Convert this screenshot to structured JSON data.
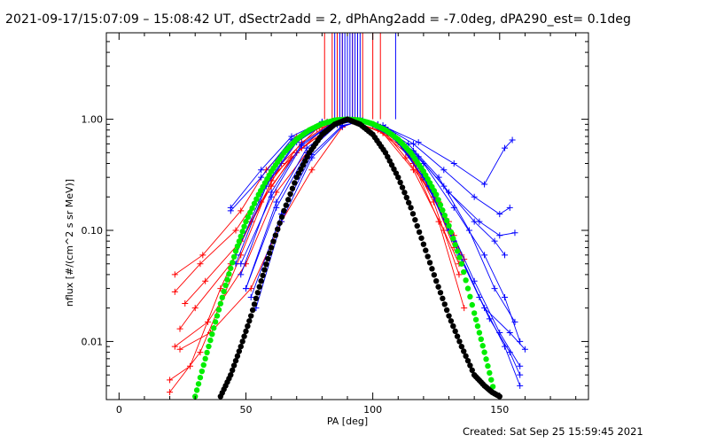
{
  "chart_data": {
    "type": "line",
    "title": "2021-09-17/15:07:09 – 15:08:42 UT, dSectr2add = 2, dPhAng2add = -7.0deg, dPA290_est=  0.1deg",
    "xlabel": "PA [deg]",
    "ylabel": "nflux [#/(cm^2 s sr MeV)]",
    "x_scale": "linear",
    "y_scale": "log",
    "xlim": [
      -5,
      185
    ],
    "ylim": [
      0.003,
      6.0
    ],
    "x_ticks": [
      0,
      50,
      100,
      150
    ],
    "x_tick_labels": [
      "0",
      "50",
      "100",
      "150"
    ],
    "y_ticks": [
      0.01,
      0.1,
      1.0
    ],
    "y_tick_labels": [
      "0.01",
      "0.10",
      "1.00"
    ],
    "colors": {
      "red_series": "#ff0000",
      "blue_series": "#0000ff",
      "green_fit": "#00ee00",
      "black_fit": "#000000"
    },
    "series": [
      {
        "name": "red spectra (PA < 90)",
        "color": "#ff0000",
        "marker": "plus",
        "curves": [
          {
            "x": [
              20,
              32,
              48,
              60,
              72,
              84,
              92,
              102,
              112,
              122,
              132
            ],
            "y": [
              0.0035,
              0.008,
              0.06,
              0.28,
              0.62,
              0.94,
              0.98,
              0.9,
              0.6,
              0.26,
              0.07
            ]
          },
          {
            "x": [
              22,
              35,
              50,
              62,
              74,
              86,
              93,
              104,
              114,
              124,
              134
            ],
            "y": [
              0.009,
              0.015,
              0.05,
              0.22,
              0.5,
              0.9,
              0.99,
              0.86,
              0.5,
              0.18,
              0.04
            ]
          },
          {
            "x": [
              22,
              33,
              48,
              58,
              70,
              82,
              91,
              100,
              110,
              120,
              130
            ],
            "y": [
              0.04,
              0.06,
              0.15,
              0.35,
              0.7,
              0.95,
              0.99,
              0.9,
              0.62,
              0.32,
              0.12
            ]
          },
          {
            "x": [
              22,
              32,
              46,
              60,
              72,
              85,
              92,
              103,
              113,
              124,
              135
            ],
            "y": [
              0.028,
              0.05,
              0.1,
              0.3,
              0.55,
              0.9,
              0.97,
              0.85,
              0.45,
              0.2,
              0.06
            ]
          },
          {
            "x": [
              24,
              36,
              52,
              64,
              76,
              88,
              95,
              106,
              116,
              126,
              136
            ],
            "y": [
              0.0085,
              0.012,
              0.03,
              0.12,
              0.35,
              0.85,
              0.98,
              0.8,
              0.4,
              0.12,
              0.02
            ]
          },
          {
            "x": [
              26,
              34,
              48,
              60,
              70,
              84,
              92,
              104,
              116,
              128,
              134
            ],
            "y": [
              0.022,
              0.035,
              0.08,
              0.25,
              0.5,
              0.88,
              0.96,
              0.75,
              0.35,
              0.1,
              0.05
            ]
          },
          {
            "x": [
              24,
              30,
              44,
              56,
              68,
              80,
              90,
              100,
              112,
              124,
              136
            ],
            "y": [
              0.013,
              0.02,
              0.05,
              0.18,
              0.45,
              0.8,
              1.0,
              0.88,
              0.55,
              0.2,
              0.055
            ]
          },
          {
            "x": [
              20,
              28,
              40,
              52,
              64,
              78,
              90,
              102,
              114,
              126,
              132
            ],
            "y": [
              0.0045,
              0.006,
              0.03,
              0.12,
              0.4,
              0.82,
              0.99,
              0.8,
              0.48,
              0.18,
              0.09
            ]
          }
        ]
      },
      {
        "name": "blue spectra (PA > 90)",
        "color": "#0000ff",
        "marker": "plus",
        "curves": [
          {
            "x": [
              48,
              60,
              72,
              84,
              92,
              104,
              116,
              128,
              140,
              150,
              158
            ],
            "y": [
              0.04,
              0.22,
              0.6,
              0.92,
              0.99,
              0.82,
              0.45,
              0.14,
              0.035,
              0.012,
              0.006
            ]
          },
          {
            "x": [
              46,
              58,
              70,
              82,
              94,
              106,
              118,
              130,
              142,
              152,
              158
            ],
            "y": [
              0.05,
              0.25,
              0.62,
              0.94,
              0.97,
              0.76,
              0.38,
              0.1,
              0.025,
              0.009,
              0.004
            ]
          },
          {
            "x": [
              50,
              62,
              74,
              86,
              95,
              108,
              120,
              132,
              144,
              154,
              160
            ],
            "y": [
              0.03,
              0.18,
              0.55,
              0.9,
              0.98,
              0.7,
              0.3,
              0.08,
              0.02,
              0.012,
              0.0085
            ]
          },
          {
            "x": [
              44,
              56,
              68,
              80,
              92,
              102,
              114,
              126,
              138,
              148,
              156
            ],
            "y": [
              0.16,
              0.35,
              0.7,
              0.95,
              1.0,
              0.9,
              0.6,
              0.3,
              0.1,
              0.03,
              0.015
            ]
          },
          {
            "x": [
              52,
              64,
              76,
              88,
              96,
              110,
              122,
              134,
              146,
              154,
              158
            ],
            "y": [
              0.025,
              0.14,
              0.48,
              0.88,
              0.96,
              0.65,
              0.25,
              0.06,
              0.016,
              0.008,
              0.005
            ]
          },
          {
            "x": [
              48,
              60,
              72,
              84,
              92,
              105,
              118,
              132,
              144,
              152,
              155
            ],
            "y": [
              0.05,
              0.2,
              0.58,
              0.91,
              0.99,
              0.85,
              0.62,
              0.4,
              0.26,
              0.55,
              0.65
            ]
          },
          {
            "x": [
              46,
              58,
              70,
              82,
              90,
              104,
              116,
              128,
              140,
              150,
              154
            ],
            "y": [
              0.06,
              0.26,
              0.64,
              0.93,
              1.0,
              0.88,
              0.6,
              0.35,
              0.2,
              0.14,
              0.16
            ]
          },
          {
            "x": [
              50,
              62,
              74,
              86,
              94,
              106,
              118,
              130,
              142,
              150,
              156
            ],
            "y": [
              0.03,
              0.16,
              0.5,
              0.89,
              0.99,
              0.78,
              0.46,
              0.22,
              0.12,
              0.09,
              0.095
            ]
          },
          {
            "x": [
              54,
              64,
              76,
              88,
              96,
              108,
              120,
              132,
              144,
              152,
              158
            ],
            "y": [
              0.02,
              0.12,
              0.45,
              0.86,
              0.98,
              0.74,
              0.4,
              0.16,
              0.06,
              0.025,
              0.01
            ]
          },
          {
            "x": [
              44,
              56,
              68,
              80,
              90,
              102,
              116,
              128,
              140,
              148,
              152
            ],
            "y": [
              0.15,
              0.3,
              0.66,
              0.93,
              1.0,
              0.86,
              0.52,
              0.25,
              0.12,
              0.08,
              0.06
            ]
          }
        ]
      },
      {
        "name": "green fit",
        "color": "#00ee00",
        "marker": "dot",
        "x": [
          30,
          34,
          38,
          42,
          46,
          50,
          55,
          60,
          65,
          70,
          75,
          80,
          85,
          90,
          95,
          100,
          105,
          110,
          115,
          120,
          125,
          130,
          135,
          140,
          144,
          148
        ],
        "y": [
          0.0032,
          0.007,
          0.015,
          0.032,
          0.065,
          0.12,
          0.21,
          0.34,
          0.5,
          0.66,
          0.8,
          0.91,
          0.98,
          1.0,
          0.98,
          0.91,
          0.8,
          0.66,
          0.5,
          0.34,
          0.21,
          0.11,
          0.05,
          0.018,
          0.008,
          0.0034
        ]
      },
      {
        "name": "black fit",
        "color": "#000000",
        "marker": "dot",
        "x": [
          40,
          44,
          48,
          52,
          56,
          60,
          65,
          70,
          75,
          80,
          85,
          90,
          95,
          100,
          105,
          110,
          115,
          120,
          125,
          130,
          135,
          140,
          144,
          147,
          150
        ],
        "y": [
          0.0032,
          0.005,
          0.009,
          0.017,
          0.035,
          0.07,
          0.15,
          0.3,
          0.5,
          0.73,
          0.9,
          1.0,
          0.9,
          0.73,
          0.5,
          0.3,
          0.16,
          0.075,
          0.035,
          0.017,
          0.009,
          0.005,
          0.004,
          0.0035,
          0.0032
        ]
      }
    ],
    "vertical_marker_lines": {
      "red_x": [
        81,
        84,
        86,
        88,
        90,
        92,
        94,
        96,
        100,
        103
      ],
      "blue_x": [
        85,
        87,
        88,
        89,
        90,
        91,
        92,
        93,
        94,
        95,
        109
      ]
    }
  },
  "footer": {
    "created": "Created: Sat Sep 25 15:59:45 2021"
  }
}
